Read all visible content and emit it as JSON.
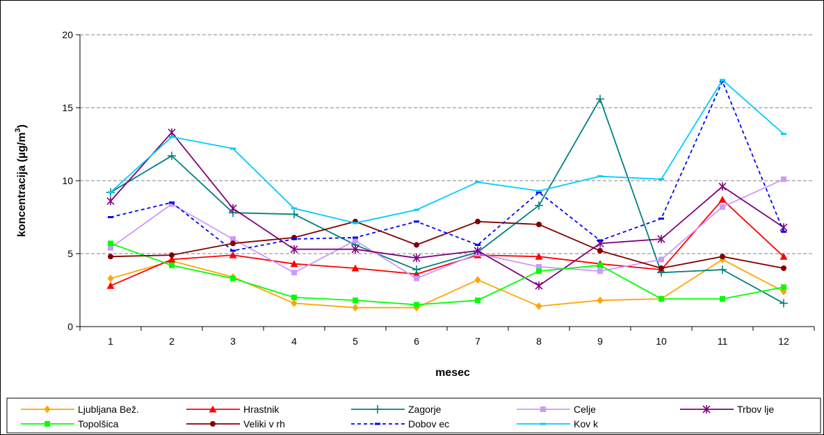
{
  "chart_data": {
    "type": "line",
    "xlabel": "mesec",
    "ylabel_main": "koncentracija (µg/m",
    "ylabel_sup": "3",
    "ylabel_close": ")",
    "x": [
      1,
      2,
      3,
      4,
      5,
      6,
      7,
      8,
      9,
      10,
      11,
      12
    ],
    "ylim": [
      0,
      20
    ],
    "yticks": [
      0,
      5,
      10,
      15,
      20
    ],
    "grid": "horizontal dashed",
    "legend_position": "bottom",
    "series": [
      {
        "name": "Ljubljana Bež.",
        "color": "#FFA500",
        "marker": "diamond",
        "dash": "solid",
        "values": [
          3.3,
          4.5,
          3.4,
          1.6,
          1.3,
          1.3,
          3.2,
          1.4,
          1.8,
          1.9,
          4.6,
          2.4
        ]
      },
      {
        "name": "Hrastnik",
        "color": "#FF0000",
        "marker": "triangle",
        "dash": "solid",
        "values": [
          2.8,
          4.6,
          4.9,
          4.3,
          4.0,
          3.6,
          4.9,
          4.8,
          4.3,
          3.9,
          8.7,
          4.8
        ]
      },
      {
        "name": "Zagorje",
        "color": "#008080",
        "marker": "plus",
        "dash": "solid",
        "values": [
          9.2,
          11.7,
          7.8,
          7.7,
          5.6,
          3.9,
          5.1,
          8.3,
          15.6,
          3.7,
          3.9,
          1.6
        ]
      },
      {
        "name": "Celje",
        "color": "#CC99FF",
        "marker": "square",
        "dash": "solid",
        "values": [
          5.4,
          8.4,
          6.0,
          3.7,
          5.9,
          3.3,
          5.0,
          4.1,
          3.8,
          4.6,
          8.2,
          10.1
        ]
      },
      {
        "name": "Trbov lje",
        "color": "#800080",
        "marker": "star",
        "dash": "solid",
        "values": [
          8.6,
          13.3,
          8.1,
          5.3,
          5.3,
          4.7,
          5.2,
          2.8,
          5.7,
          6.0,
          9.6,
          6.8
        ]
      },
      {
        "name": "Topolšica",
        "color": "#00FF00",
        "marker": "square",
        "dash": "solid",
        "values": [
          5.7,
          4.2,
          3.3,
          2.0,
          1.8,
          1.5,
          1.8,
          3.8,
          4.2,
          1.9,
          1.9,
          2.7
        ]
      },
      {
        "name": "Veliki v rh",
        "color": "#800000",
        "marker": "circle",
        "dash": "solid",
        "values": [
          4.8,
          4.9,
          5.7,
          6.1,
          7.2,
          5.6,
          7.2,
          7.0,
          5.2,
          4.0,
          4.8,
          4.0
        ]
      },
      {
        "name": "Dobov ec",
        "color": "#0000FF",
        "marker": "dash",
        "dash": "dashed",
        "values": [
          7.5,
          8.5,
          5.2,
          6.0,
          6.1,
          7.2,
          5.6,
          9.2,
          5.9,
          7.4,
          16.8,
          6.5
        ]
      },
      {
        "name": "Kov k",
        "color": "#00CCFF",
        "marker": "dash",
        "dash": "solid",
        "values": [
          9.2,
          13.0,
          12.2,
          8.1,
          7.1,
          8.0,
          9.9,
          9.3,
          10.3,
          10.1,
          16.9,
          13.2
        ]
      }
    ]
  }
}
